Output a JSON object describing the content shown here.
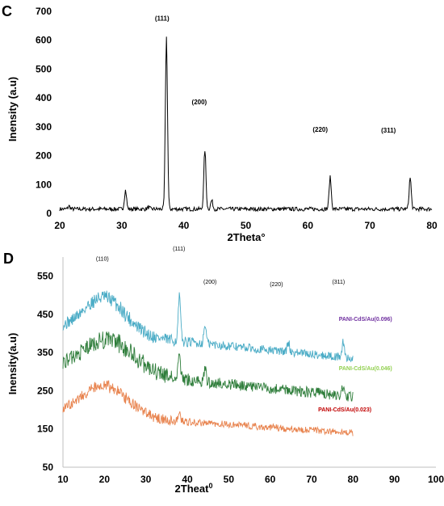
{
  "chart_data": [
    {
      "type": "line",
      "panel_label": "C",
      "xlabel": "2Theta°",
      "ylabel": "Inensity (a.u)",
      "xlim": [
        20,
        80
      ],
      "ylim": [
        0,
        700
      ],
      "xticks": [
        20,
        30,
        40,
        50,
        60,
        70,
        80
      ],
      "yticks": [
        0,
        100,
        200,
        300,
        400,
        500,
        600,
        700
      ],
      "grid": false,
      "baseline": 15,
      "peaks": [
        {
          "x": 21.5,
          "height": 10
        },
        {
          "x": 30.6,
          "height": 65
        },
        {
          "x": 34.3,
          "height": 6
        },
        {
          "x": 37.2,
          "height": 595
        },
        {
          "x": 43.4,
          "height": 205
        },
        {
          "x": 44.5,
          "height": 30
        },
        {
          "x": 63.6,
          "height": 110
        },
        {
          "x": 76.5,
          "height": 108
        }
      ],
      "annotations": [
        {
          "text": "(111)",
          "x": 36.5,
          "y": 668
        },
        {
          "text": "(200)",
          "x": 42.5,
          "y": 378
        },
        {
          "text": "(220)",
          "x": 62.0,
          "y": 283
        },
        {
          "text": "(311)",
          "x": 73.0,
          "y": 280
        }
      ]
    },
    {
      "type": "line",
      "panel_label": "D",
      "xlabel": "2Theat",
      "xlabel_sup": "0",
      "ylabel": "Inensity(a.u)",
      "xlim": [
        10,
        100
      ],
      "ylim": [
        50,
        600
      ],
      "xticks": [
        10,
        20,
        30,
        40,
        50,
        60,
        70,
        80,
        90,
        100
      ],
      "yticks": [
        50,
        150,
        250,
        350,
        450,
        550
      ],
      "grid": false,
      "x_range": [
        10,
        80
      ],
      "series": [
        {
          "name": "PANI-CdS/Au(0.096)",
          "color": "#4bacc6",
          "hump": {
            "center": 20,
            "height": 95,
            "width": 5
          },
          "baseline_start": 410,
          "baseline_end": 335,
          "noise": 22,
          "peaks": [
            {
              "x": 38.1,
              "height": 115
            },
            {
              "x": 44.3,
              "height": 50
            },
            {
              "x": 64.4,
              "height": 25
            },
            {
              "x": 77.6,
              "height": 38
            }
          ]
        },
        {
          "name": "PANI-CdS/Au(0.046)",
          "color": "#2e7d3a",
          "hump": {
            "center": 21,
            "height": 85,
            "width": 6
          },
          "baseline_start": 310,
          "baseline_end": 235,
          "noise": 28,
          "peaks": [
            {
              "x": 38.1,
              "height": 60
            },
            {
              "x": 44.3,
              "height": 30
            },
            {
              "x": 77.6,
              "height": 22
            }
          ]
        },
        {
          "name": "PANI-CdS/Au(0.023)",
          "color": "#e8834e",
          "hump": {
            "center": 20,
            "height": 80,
            "width": 5.5
          },
          "baseline_start": 190,
          "baseline_end": 140,
          "noise": 18,
          "peaks": [
            {
              "x": 38.1,
              "height": 25
            }
          ]
        }
      ],
      "annotations": [
        {
          "text": "(110)",
          "x": 19.5,
          "y": 590
        },
        {
          "text": "(111)",
          "x": 38.0,
          "y": 617
        },
        {
          "text": "(200)",
          "x": 45.5,
          "y": 530
        },
        {
          "text": "(220)",
          "x": 61.5,
          "y": 524
        },
        {
          "text": "(311)",
          "x": 76.5,
          "y": 530
        }
      ],
      "legend_labels": [
        {
          "text": "PANI-CdS/Au(0.096)",
          "color": "#7030a0",
          "x": 83.0,
          "y": 433
        },
        {
          "text": "PANI-CdS/Au(0.046)",
          "color": "#92d050",
          "x": 83.0,
          "y": 304
        },
        {
          "text": "PANI-CdS/Au(0.023)",
          "color": "#c00000",
          "x": 78.0,
          "y": 196
        }
      ]
    }
  ]
}
